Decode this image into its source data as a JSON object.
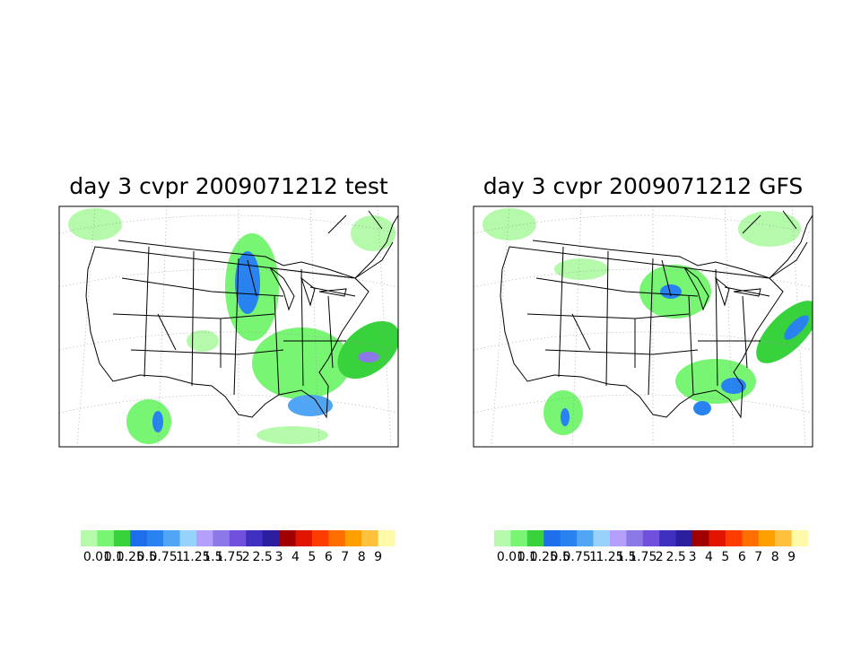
{
  "panels": [
    {
      "title": "day 3 cvpr 2009071212 test",
      "colorbar": {
        "labels": [
          "0.01",
          "0.1",
          "0.25",
          "0.5",
          "0.75",
          "1",
          "1.25",
          "1.5",
          "1.75",
          "2",
          "2.5",
          "3",
          "4",
          "5",
          "6",
          "7",
          "8",
          "9"
        ]
      }
    },
    {
      "title": "day 3 cvpr 2009071212 GFS",
      "colorbar": {
        "labels": [
          "0.01",
          "0.1",
          "0.25",
          "0.5",
          "0.75",
          "1",
          "1.25",
          "1.5",
          "1.75",
          "2",
          "2.5",
          "3",
          "4",
          "5",
          "6",
          "7",
          "8",
          "9"
        ]
      }
    }
  ],
  "colorbar_colors": [
    "#b4faaa",
    "#78f573",
    "#37d23c",
    "#1e6eeb",
    "#2882f0",
    "#50a5f5",
    "#96d2fa",
    "#b4a0fa",
    "#8c78e6",
    "#7050dc",
    "#4030c0",
    "#2d1ea0",
    "#a00000",
    "#e11400",
    "#ff3c00",
    "#ff6e00",
    "#ffa000",
    "#ffc03c",
    "#fffaaa"
  ]
}
